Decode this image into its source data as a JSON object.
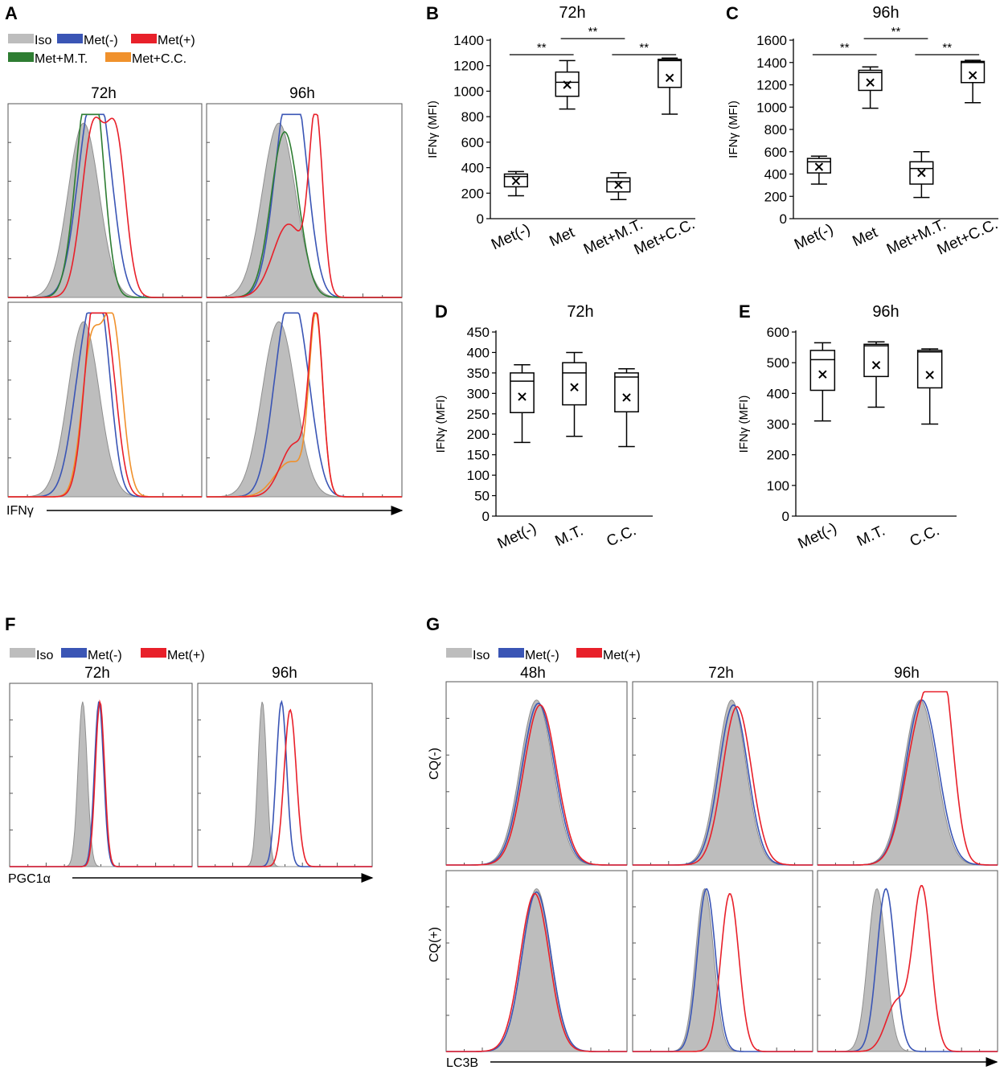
{
  "figure": {
    "panel_letters": [
      "A",
      "B",
      "C",
      "D",
      "E",
      "F",
      "G"
    ]
  },
  "colors": {
    "iso": "#bdbdbd",
    "met_neg": "#3a55b5",
    "met_pos": "#e8202a",
    "met_mt": "#2e7d32",
    "met_cc": "#f0912c",
    "black": "#000000"
  },
  "panel_A": {
    "legend": {
      "row1": [
        "Iso",
        "Met(-)",
        "Met(+)"
      ],
      "row2": [
        "Met+M.T.",
        "Met+C.C."
      ]
    },
    "col_titles": [
      "72h",
      "96h"
    ],
    "axis_label": "IFNγ"
  },
  "panel_F": {
    "legend": [
      "Iso",
      "Met(-)",
      "Met(+)"
    ],
    "col_titles": [
      "72h",
      "96h"
    ],
    "axis_label": "PGC1α"
  },
  "panel_G": {
    "legend": [
      "Iso",
      "Met(-)",
      "Met(+)"
    ],
    "col_titles": [
      "48h",
      "72h",
      "96h"
    ],
    "row_labels": [
      "CQ(-)",
      "CQ(+)"
    ],
    "axis_label": "LC3B"
  },
  "chart_data": [
    {
      "id": "B",
      "type": "box",
      "title": "72h",
      "ylabel": "IFNγ (MFI)",
      "ylim": [
        0,
        1400
      ],
      "yticks": [
        0,
        200,
        400,
        600,
        800,
        1000,
        1200,
        1400
      ],
      "categories": [
        "Met(-)",
        "Met",
        "Met+M.T.",
        "Met+C.C."
      ],
      "boxes": [
        {
          "min": 180,
          "q1": 250,
          "median": 330,
          "q3": 350,
          "max": 370,
          "mean": 295
        },
        {
          "min": 860,
          "q1": 960,
          "median": 1070,
          "q3": 1150,
          "max": 1240,
          "mean": 1050
        },
        {
          "min": 150,
          "q1": 210,
          "median": 290,
          "q3": 320,
          "max": 360,
          "mean": 265
        },
        {
          "min": 820,
          "q1": 1030,
          "median": 1240,
          "q3": 1250,
          "max": 1260,
          "mean": 1105
        }
      ],
      "significance": [
        {
          "from": 0,
          "to": 1,
          "label": "**",
          "level": 0
        },
        {
          "from": 2,
          "to": 3,
          "label": "**",
          "level": 0
        },
        {
          "from": 1,
          "to": 2,
          "label": "**",
          "level": 1
        }
      ]
    },
    {
      "id": "C",
      "type": "box",
      "title": "96h",
      "ylabel": "IFNγ (MFI)",
      "ylim": [
        0,
        1600
      ],
      "yticks": [
        0,
        200,
        400,
        600,
        800,
        1000,
        1200,
        1400,
        1600
      ],
      "categories": [
        "Met(-)",
        "Met",
        "Met+M.T.",
        "Met+C.C."
      ],
      "boxes": [
        {
          "min": 310,
          "q1": 410,
          "median": 510,
          "q3": 540,
          "max": 560,
          "mean": 465
        },
        {
          "min": 990,
          "q1": 1150,
          "median": 1310,
          "q3": 1330,
          "max": 1360,
          "mean": 1220
        },
        {
          "min": 190,
          "q1": 310,
          "median": 450,
          "q3": 510,
          "max": 600,
          "mean": 410
        },
        {
          "min": 1040,
          "q1": 1220,
          "median": 1400,
          "q3": 1410,
          "max": 1420,
          "mean": 1285
        }
      ],
      "significance": [
        {
          "from": 0,
          "to": 1,
          "label": "**",
          "level": 0
        },
        {
          "from": 2,
          "to": 3,
          "label": "**",
          "level": 0
        },
        {
          "from": 1,
          "to": 2,
          "label": "**",
          "level": 1
        }
      ]
    },
    {
      "id": "D",
      "type": "box",
      "title": "72h",
      "ylabel": "IFNγ (MFI)",
      "ylim": [
        0,
        450
      ],
      "yticks": [
        0,
        50,
        100,
        150,
        200,
        250,
        300,
        350,
        400,
        450
      ],
      "categories": [
        "Met(-)",
        "M.T.",
        "C.C."
      ],
      "boxes": [
        {
          "min": 180,
          "q1": 253,
          "median": 330,
          "q3": 350,
          "max": 370,
          "mean": 292
        },
        {
          "min": 195,
          "q1": 272,
          "median": 350,
          "q3": 375,
          "max": 400,
          "mean": 315
        },
        {
          "min": 170,
          "q1": 255,
          "median": 340,
          "q3": 350,
          "max": 360,
          "mean": 290
        }
      ],
      "significance": []
    },
    {
      "id": "E",
      "type": "box",
      "title": "96h",
      "ylabel": "IFNγ (MFI)",
      "ylim": [
        0,
        600
      ],
      "yticks": [
        0,
        100,
        200,
        300,
        400,
        500,
        600
      ],
      "categories": [
        "Met(-)",
        "M.T.",
        "C.C."
      ],
      "boxes": [
        {
          "min": 310,
          "q1": 410,
          "median": 510,
          "q3": 540,
          "max": 565,
          "mean": 462
        },
        {
          "min": 355,
          "q1": 455,
          "median": 555,
          "q3": 560,
          "max": 568,
          "mean": 492
        },
        {
          "min": 300,
          "q1": 418,
          "median": 535,
          "q3": 540,
          "max": 545,
          "mean": 460
        }
      ],
      "significance": []
    },
    {
      "id": "A",
      "type": "histogram-overlay",
      "axis_label": "IFNγ",
      "panels": [
        {
          "row": 0,
          "col": 0,
          "title": "72h",
          "series": [
            {
              "name": "Iso",
              "fill": true,
              "peaks": [
                [
                  0.39,
                  1.0,
                  0.08
                ]
              ]
            },
            {
              "name": "Met(-)",
              "peaks": [
                [
                  0.42,
                  0.93,
                  0.07
                ],
                [
                  0.5,
                  0.55,
                  0.06
                ]
              ]
            },
            {
              "name": "Met+M.T.",
              "peaks": [
                [
                  0.4,
                  0.95,
                  0.06
                ],
                [
                  0.46,
                  0.6,
                  0.05
                ]
              ]
            },
            {
              "name": "Met(+)",
              "peaks": [
                [
                  0.44,
                  0.97,
                  0.06
                ],
                [
                  0.56,
                  0.85,
                  0.05
                ]
              ]
            }
          ]
        },
        {
          "row": 0,
          "col": 1,
          "title": "96h",
          "series": [
            {
              "name": "Iso",
              "fill": true,
              "peaks": [
                [
                  0.37,
                  1.0,
                  0.085
                ]
              ]
            },
            {
              "name": "Met(-)",
              "peaks": [
                [
                  0.41,
                  0.97,
                  0.07
                ],
                [
                  0.48,
                  0.5,
                  0.06
                ]
              ]
            },
            {
              "name": "Met+M.T.",
              "peaks": [
                [
                  0.4,
                  0.95,
                  0.07
                ]
              ]
            },
            {
              "name": "Met(+)",
              "peaks": [
                [
                  0.42,
                  0.42,
                  0.08
                ],
                [
                  0.56,
                  1.0,
                  0.035
                ]
              ]
            }
          ]
        },
        {
          "row": 1,
          "col": 0,
          "title": "",
          "series": [
            {
              "name": "Iso",
              "fill": true,
              "peaks": [
                [
                  0.39,
                  1.0,
                  0.08
                ]
              ]
            },
            {
              "name": "Met(-)",
              "peaks": [
                [
                  0.41,
                  0.9,
                  0.07
                ],
                [
                  0.49,
                  0.6,
                  0.05
                ]
              ]
            },
            {
              "name": "Met+C.C.",
              "peaks": [
                [
                  0.43,
                  0.85,
                  0.05
                ],
                [
                  0.54,
                  0.98,
                  0.05
                ]
              ]
            },
            {
              "name": "Met(+)",
              "peaks": [
                [
                  0.44,
                  0.97,
                  0.05
                ],
                [
                  0.52,
                  0.7,
                  0.05
                ]
              ]
            }
          ]
        },
        {
          "row": 1,
          "col": 1,
          "title": "",
          "series": [
            {
              "name": "Iso",
              "fill": true,
              "peaks": [
                [
                  0.37,
                  1.0,
                  0.085
                ]
              ]
            },
            {
              "name": "Met(-)",
              "peaks": [
                [
                  0.41,
                  0.97,
                  0.07
                ],
                [
                  0.5,
                  0.45,
                  0.06
                ]
              ]
            },
            {
              "name": "Met+C.C.",
              "peaks": [
                [
                  0.43,
                  0.2,
                  0.08
                ],
                [
                  0.56,
                  1.0,
                  0.035
                ]
              ]
            },
            {
              "name": "Met(+)",
              "peaks": [
                [
                  0.45,
                  0.3,
                  0.07
                ],
                [
                  0.56,
                  1.0,
                  0.035
                ]
              ]
            }
          ]
        }
      ]
    },
    {
      "id": "F",
      "type": "histogram-overlay",
      "axis_label": "PGC1α",
      "panels": [
        {
          "row": 0,
          "col": 0,
          "title": "72h",
          "series": [
            {
              "name": "Iso",
              "fill": true,
              "peaks": [
                [
                  0.4,
                  1.0,
                  0.025
                ]
              ]
            },
            {
              "name": "Met(-)",
              "peaks": [
                [
                  0.49,
                  1.0,
                  0.025
                ]
              ]
            },
            {
              "name": "Met(+)",
              "peaks": [
                [
                  0.495,
                  1.0,
                  0.025
                ]
              ]
            }
          ]
        },
        {
          "row": 0,
          "col": 1,
          "title": "96h",
          "series": [
            {
              "name": "Iso",
              "fill": true,
              "peaks": [
                [
                  0.37,
                  1.0,
                  0.025
                ]
              ]
            },
            {
              "name": "Met(-)",
              "peaks": [
                [
                  0.48,
                  1.0,
                  0.03
                ]
              ]
            },
            {
              "name": "Met(+)",
              "peaks": [
                [
                  0.53,
                  0.95,
                  0.035
                ]
              ]
            }
          ]
        }
      ]
    },
    {
      "id": "G",
      "type": "histogram-overlay",
      "axis_label": "LC3B",
      "panels": [
        {
          "row": 0,
          "col": 0,
          "title": "48h",
          "series": [
            {
              "name": "Iso",
              "fill": true,
              "peaks": [
                [
                  0.5,
                  1.0,
                  0.09
                ]
              ]
            },
            {
              "name": "Met(-)",
              "peaks": [
                [
                  0.51,
                  0.98,
                  0.09
                ]
              ]
            },
            {
              "name": "Met(+)",
              "peaks": [
                [
                  0.52,
                  0.97,
                  0.09
                ]
              ]
            }
          ]
        },
        {
          "row": 0,
          "col": 1,
          "title": "72h",
          "series": [
            {
              "name": "Iso",
              "fill": true,
              "peaks": [
                [
                  0.55,
                  1.0,
                  0.08
                ]
              ]
            },
            {
              "name": "Met(-)",
              "peaks": [
                [
                  0.56,
                  0.97,
                  0.08
                ]
              ]
            },
            {
              "name": "Met(+)",
              "peaks": [
                [
                  0.58,
                  0.96,
                  0.08
                ]
              ]
            }
          ]
        },
        {
          "row": 0,
          "col": 2,
          "title": "96h",
          "series": [
            {
              "name": "Iso",
              "fill": true,
              "peaks": [
                [
                  0.57,
                  1.0,
                  0.09
                ]
              ]
            },
            {
              "name": "Met(-)",
              "peaks": [
                [
                  0.58,
                  1.0,
                  0.09
                ]
              ]
            },
            {
              "name": "Met(+)",
              "peaks": [
                [
                  0.58,
                  0.9,
                  0.09
                ],
                [
                  0.7,
                  0.85,
                  0.06
                ]
              ]
            }
          ]
        },
        {
          "row": 1,
          "col": 0,
          "title": "",
          "series": [
            {
              "name": "Iso",
              "fill": true,
              "peaks": [
                [
                  0.5,
                  1.0,
                  0.08
                ]
              ]
            },
            {
              "name": "Met(-)",
              "peaks": [
                [
                  0.5,
                  0.98,
                  0.08
                ]
              ]
            },
            {
              "name": "Met(+)",
              "peaks": [
                [
                  0.49,
                  0.97,
                  0.08
                ]
              ]
            }
          ]
        },
        {
          "row": 1,
          "col": 1,
          "title": "",
          "series": [
            {
              "name": "Iso",
              "fill": true,
              "peaks": [
                [
                  0.4,
                  1.0,
                  0.05
                ]
              ]
            },
            {
              "name": "Met(-)",
              "peaks": [
                [
                  0.41,
                  1.0,
                  0.05
                ]
              ]
            },
            {
              "name": "Met(+)",
              "peaks": [
                [
                  0.54,
                  0.97,
                  0.05
                ]
              ]
            }
          ]
        },
        {
          "row": 1,
          "col": 2,
          "title": "",
          "series": [
            {
              "name": "Iso",
              "fill": true,
              "peaks": [
                [
                  0.33,
                  1.0,
                  0.05
                ]
              ]
            },
            {
              "name": "Met(-)",
              "peaks": [
                [
                  0.38,
                  1.0,
                  0.05
                ]
              ]
            },
            {
              "name": "Met(+)",
              "peaks": [
                [
                  0.44,
                  0.3,
                  0.06
                ],
                [
                  0.58,
                  1.0,
                  0.05
                ]
              ]
            }
          ]
        }
      ]
    }
  ]
}
